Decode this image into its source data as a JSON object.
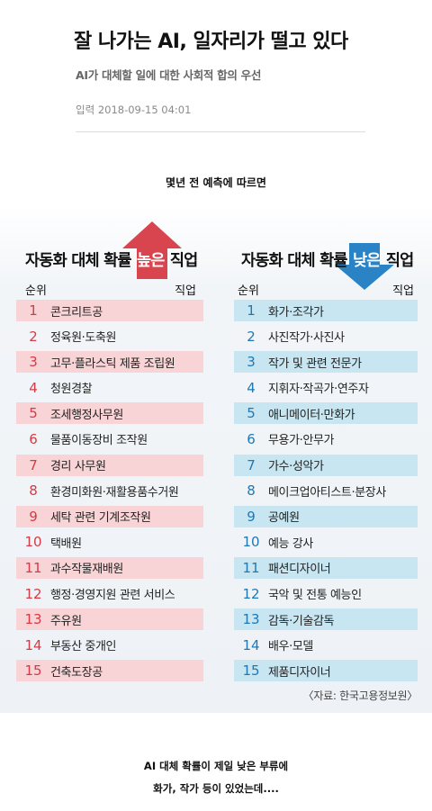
{
  "article": {
    "headline": "잘 나가는 AI, 일자리가 떨고 있다",
    "subheadline": "AI가 대체할 일에 대한 사회적 합의 우선",
    "dateline": "입력 2018-09-15 04:01"
  },
  "intro_caption": "몇년 전 예측에 따르면",
  "colors": {
    "high_accent": "#d9454f",
    "low_accent": "#2a83c4",
    "high_row": "#f8d4d7",
    "low_row": "#c7e6f1"
  },
  "high": {
    "title_prefix": "자동화 대체 확률 ",
    "title_highlight": "높은",
    "title_suffix": " 직업",
    "arrow_icon": "arrow-up",
    "rank_header": "순위",
    "job_header": "직업",
    "rows": [
      {
        "rank": "1",
        "job": "콘크리트공"
      },
      {
        "rank": "2",
        "job": "정육원·도축원"
      },
      {
        "rank": "3",
        "job": "고무·플라스틱 제품 조립원"
      },
      {
        "rank": "4",
        "job": "청원경찰"
      },
      {
        "rank": "5",
        "job": "조세행정사무원"
      },
      {
        "rank": "6",
        "job": "물품이동장비 조작원"
      },
      {
        "rank": "7",
        "job": "경리 사무원"
      },
      {
        "rank": "8",
        "job": "환경미화원·재활용품수거원"
      },
      {
        "rank": "9",
        "job": "세탁 관련 기계조작원"
      },
      {
        "rank": "10",
        "job": "택배원"
      },
      {
        "rank": "11",
        "job": "과수작물재배원"
      },
      {
        "rank": "12",
        "job": "행정·경영지원 관련 서비스"
      },
      {
        "rank": "13",
        "job": "주유원"
      },
      {
        "rank": "14",
        "job": "부동산 중개인"
      },
      {
        "rank": "15",
        "job": "건축도장공"
      }
    ]
  },
  "low": {
    "title_prefix": "자동화 대체 확률 ",
    "title_highlight": "낮은",
    "title_suffix": " 직업",
    "arrow_icon": "arrow-down",
    "rank_header": "순위",
    "job_header": "직업",
    "rows": [
      {
        "rank": "1",
        "job": "화가·조각가"
      },
      {
        "rank": "2",
        "job": "사진작가·사진사"
      },
      {
        "rank": "3",
        "job": "작가 및 관련 전문가"
      },
      {
        "rank": "4",
        "job": "지휘자·작곡가·연주자"
      },
      {
        "rank": "5",
        "job": "애니메이터·만화가"
      },
      {
        "rank": "6",
        "job": "무용가·안무가"
      },
      {
        "rank": "7",
        "job": "가수·성악가"
      },
      {
        "rank": "8",
        "job": "메이크업아티스트·분장사"
      },
      {
        "rank": "9",
        "job": "공예원"
      },
      {
        "rank": "10",
        "job": "예능 강사"
      },
      {
        "rank": "11",
        "job": "패션디자이너"
      },
      {
        "rank": "12",
        "job": "국악 및 전통 예능인"
      },
      {
        "rank": "13",
        "job": "감독·기술감독"
      },
      {
        "rank": "14",
        "job": "배우·모델"
      },
      {
        "rank": "15",
        "job": "제품디자이너"
      }
    ]
  },
  "source": "〈자료: 한국고용정보원〉",
  "footer": {
    "line1": "AI 대체 확률이 제일 낮은 부류에",
    "line2": "화가, 작가 등이 있었는데...."
  }
}
